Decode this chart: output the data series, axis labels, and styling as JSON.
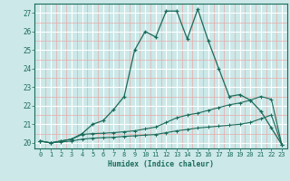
{
  "title": "",
  "xlabel": "Humidex (Indice chaleur)",
  "bg_color": "#cce8e8",
  "grid_color_major": "#ffffff",
  "grid_color_minor": "#e8aaaa",
  "line_color": "#1a6b5a",
  "xlim": [
    -0.5,
    23.5
  ],
  "ylim": [
    19.7,
    27.5
  ],
  "yticks": [
    20,
    21,
    22,
    23,
    24,
    25,
    26,
    27
  ],
  "xticks": [
    0,
    1,
    2,
    3,
    4,
    5,
    6,
    7,
    8,
    9,
    10,
    11,
    12,
    13,
    14,
    15,
    16,
    17,
    18,
    19,
    20,
    21,
    22,
    23
  ],
  "line1_x": [
    0,
    1,
    2,
    3,
    4,
    5,
    6,
    7,
    8,
    9,
    10,
    11,
    12,
    13,
    14,
    15,
    16,
    17,
    18,
    19,
    20,
    21,
    22,
    23
  ],
  "line1_y": [
    20.1,
    20.0,
    20.1,
    20.2,
    20.5,
    21.0,
    21.2,
    21.8,
    22.5,
    25.0,
    26.0,
    25.7,
    27.1,
    27.1,
    25.6,
    27.2,
    25.5,
    24.0,
    22.5,
    22.6,
    22.3,
    21.7,
    20.8,
    19.9
  ],
  "line2_x": [
    0,
    1,
    2,
    3,
    4,
    5,
    6,
    7,
    8,
    9,
    10,
    11,
    12,
    13,
    14,
    15,
    16,
    17,
    18,
    19,
    20,
    21,
    22,
    23
  ],
  "line2_y": [
    20.1,
    20.0,
    20.1,
    20.2,
    20.45,
    20.5,
    20.52,
    20.55,
    20.6,
    20.65,
    20.75,
    20.85,
    21.1,
    21.35,
    21.5,
    21.6,
    21.75,
    21.9,
    22.05,
    22.15,
    22.3,
    22.5,
    22.35,
    19.9
  ],
  "line3_x": [
    0,
    1,
    2,
    3,
    4,
    5,
    6,
    7,
    8,
    9,
    10,
    11,
    12,
    13,
    14,
    15,
    16,
    17,
    18,
    19,
    20,
    21,
    22,
    23
  ],
  "line3_y": [
    20.1,
    20.0,
    20.05,
    20.1,
    20.2,
    20.25,
    20.28,
    20.3,
    20.35,
    20.38,
    20.42,
    20.45,
    20.55,
    20.65,
    20.72,
    20.8,
    20.85,
    20.9,
    20.95,
    21.0,
    21.1,
    21.3,
    21.5,
    19.9
  ]
}
